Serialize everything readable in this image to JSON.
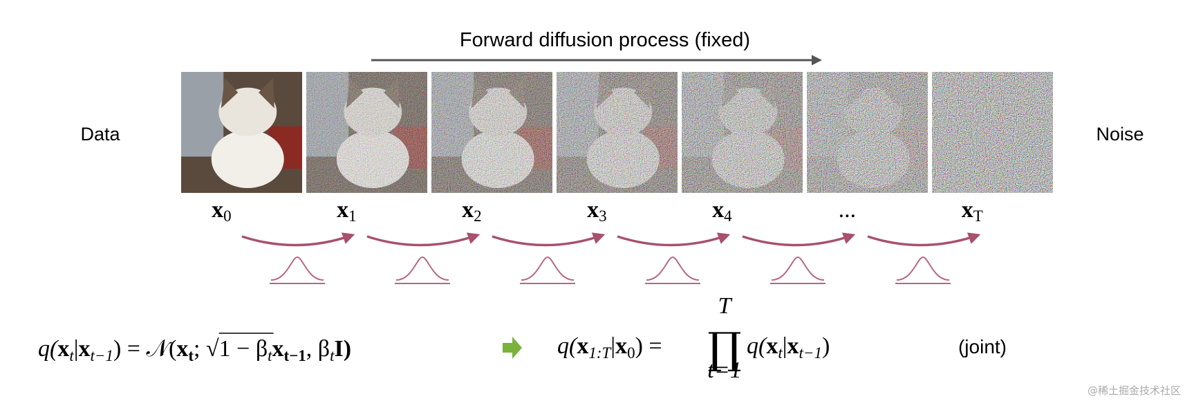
{
  "title": "Forward diffusion process (fixed)",
  "left_label": "Data",
  "right_label": "Noise",
  "steps": [
    {
      "var": "x",
      "sub": "0"
    },
    {
      "var": "x",
      "sub": "1"
    },
    {
      "var": "x",
      "sub": "2"
    },
    {
      "var": "x",
      "sub": "3"
    },
    {
      "var": "x",
      "sub": "4"
    },
    {
      "var": "..."
    },
    {
      "var": "x",
      "sub": "T"
    }
  ],
  "equation_step": [
    "q(",
    "x",
    "t",
    "|",
    "x",
    "t−1",
    ") = 𝒩(",
    "x",
    "t",
    "; ",
    "√",
    "1 − β",
    "t",
    "x",
    "t−1",
    ", β",
    "t",
    "I)"
  ],
  "equation_joint": {
    "left": [
      "q(",
      "x",
      "1:T",
      "|",
      "x",
      "0",
      ") ="
    ],
    "product": "∏",
    "upper": "T",
    "lower": "t=1",
    "right": [
      "q(",
      "x",
      "t",
      "|",
      "x",
      "t−1",
      ")"
    ]
  },
  "joint_label": "(joint)",
  "watermark": "@稀土掘金技术社区"
}
